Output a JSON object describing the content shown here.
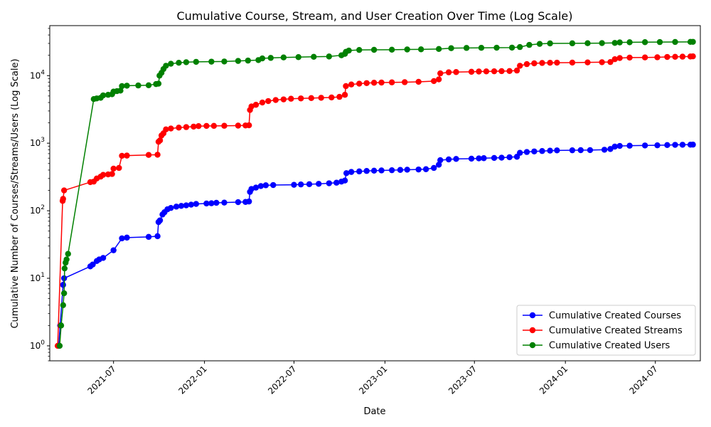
{
  "chart_data": {
    "type": "line",
    "title": "Cumulative Course, Stream, and User Creation Over Time (Log Scale)",
    "xlabel": "Date",
    "ylabel": "Cumulative Number of Courses/Streams/Users (Log Scale)",
    "yscale": "log",
    "ylim": [
      0.6,
      55000
    ],
    "xlim": [
      "2021-02-22",
      "2024-09-30"
    ],
    "x_ticks": [
      "2021-07",
      "2022-01",
      "2022-07",
      "2023-01",
      "2023-07",
      "2024-01",
      "2024-07"
    ],
    "y_ticks": [
      "10^0",
      "10^1",
      "10^2",
      "10^3",
      "10^4"
    ],
    "grid": false,
    "legend_position": "lower-right",
    "series": [
      {
        "name": "Cumulative Created Courses",
        "color": "#0000ff",
        "marker": "circle",
        "points": [
          [
            "2021-03-12",
            1
          ],
          [
            "2021-03-15",
            2
          ],
          [
            "2021-03-21",
            8
          ],
          [
            "2021-03-23",
            10
          ],
          [
            "2021-05-15",
            15
          ],
          [
            "2021-05-20",
            16
          ],
          [
            "2021-05-28",
            18
          ],
          [
            "2021-06-02",
            19
          ],
          [
            "2021-06-10",
            20
          ],
          [
            "2021-07-01",
            26
          ],
          [
            "2021-07-18",
            39
          ],
          [
            "2021-07-28",
            40
          ],
          [
            "2021-09-10",
            41
          ],
          [
            "2021-09-28",
            42
          ],
          [
            "2021-09-30",
            68
          ],
          [
            "2021-10-03",
            72
          ],
          [
            "2021-10-08",
            88
          ],
          [
            "2021-10-12",
            95
          ],
          [
            "2021-10-18",
            105
          ],
          [
            "2021-10-25",
            110
          ],
          [
            "2021-11-05",
            115
          ],
          [
            "2021-11-15",
            118
          ],
          [
            "2021-11-25",
            120
          ],
          [
            "2021-12-05",
            123
          ],
          [
            "2021-12-15",
            126
          ],
          [
            "2022-01-05",
            128
          ],
          [
            "2022-01-15",
            129
          ],
          [
            "2022-01-25",
            131
          ],
          [
            "2022-02-10",
            132
          ],
          [
            "2022-03-10",
            134
          ],
          [
            "2022-03-25",
            135
          ],
          [
            "2022-04-01",
            137
          ],
          [
            "2022-04-03",
            190
          ],
          [
            "2022-04-06",
            210
          ],
          [
            "2022-04-15",
            220
          ],
          [
            "2022-04-25",
            232
          ],
          [
            "2022-05-05",
            238
          ],
          [
            "2022-05-20",
            240
          ],
          [
            "2022-07-01",
            242
          ],
          [
            "2022-07-15",
            245
          ],
          [
            "2022-08-01",
            247
          ],
          [
            "2022-08-20",
            250
          ],
          [
            "2022-09-10",
            255
          ],
          [
            "2022-09-25",
            260
          ],
          [
            "2022-10-05",
            270
          ],
          [
            "2022-10-12",
            280
          ],
          [
            "2022-10-15",
            360
          ],
          [
            "2022-10-25",
            375
          ],
          [
            "2022-11-10",
            382
          ],
          [
            "2022-11-25",
            388
          ],
          [
            "2022-12-10",
            392
          ],
          [
            "2022-12-25",
            395
          ],
          [
            "2023-01-15",
            398
          ],
          [
            "2023-02-01",
            402
          ],
          [
            "2023-02-15",
            405
          ],
          [
            "2023-03-10",
            408
          ],
          [
            "2023-03-25",
            412
          ],
          [
            "2023-04-10",
            430
          ],
          [
            "2023-04-20",
            480
          ],
          [
            "2023-04-23",
            560
          ],
          [
            "2023-05-10",
            575
          ],
          [
            "2023-05-25",
            585
          ],
          [
            "2023-06-25",
            590
          ],
          [
            "2023-07-10",
            595
          ],
          [
            "2023-07-20",
            600
          ],
          [
            "2023-08-10",
            605
          ],
          [
            "2023-08-25",
            610
          ],
          [
            "2023-09-10",
            620
          ],
          [
            "2023-09-25",
            630
          ],
          [
            "2023-10-01",
            720
          ],
          [
            "2023-10-15",
            740
          ],
          [
            "2023-10-30",
            755
          ],
          [
            "2023-11-15",
            765
          ],
          [
            "2023-12-01",
            775
          ],
          [
            "2023-12-15",
            782
          ],
          [
            "2024-01-15",
            785
          ],
          [
            "2024-02-01",
            788
          ],
          [
            "2024-02-20",
            790
          ],
          [
            "2024-03-20",
            800
          ],
          [
            "2024-04-01",
            820
          ],
          [
            "2024-04-10",
            890
          ],
          [
            "2024-04-20",
            910
          ],
          [
            "2024-05-10",
            918
          ],
          [
            "2024-06-10",
            925
          ],
          [
            "2024-07-05",
            930
          ],
          [
            "2024-07-25",
            938
          ],
          [
            "2024-08-10",
            945
          ],
          [
            "2024-08-25",
            948
          ],
          [
            "2024-09-10",
            950
          ],
          [
            "2024-09-15",
            952
          ]
        ]
      },
      {
        "name": "Cumulative Created Streams",
        "color": "#ff0000",
        "marker": "circle",
        "points": [
          [
            "2021-03-10",
            1
          ],
          [
            "2021-03-20",
            140
          ],
          [
            "2021-03-21",
            150
          ],
          [
            "2021-03-23",
            200
          ],
          [
            "2021-05-15",
            265
          ],
          [
            "2021-05-22",
            270
          ],
          [
            "2021-05-28",
            300
          ],
          [
            "2021-06-05",
            320
          ],
          [
            "2021-06-10",
            340
          ],
          [
            "2021-06-20",
            345
          ],
          [
            "2021-06-28",
            350
          ],
          [
            "2021-07-01",
            420
          ],
          [
            "2021-07-12",
            430
          ],
          [
            "2021-07-18",
            650
          ],
          [
            "2021-07-28",
            655
          ],
          [
            "2021-09-10",
            670
          ],
          [
            "2021-09-28",
            675
          ],
          [
            "2021-09-30",
            1050
          ],
          [
            "2021-10-03",
            1100
          ],
          [
            "2021-10-06",
            1300
          ],
          [
            "2021-10-10",
            1400
          ],
          [
            "2021-10-15",
            1600
          ],
          [
            "2021-10-25",
            1650
          ],
          [
            "2021-11-10",
            1700
          ],
          [
            "2021-11-25",
            1730
          ],
          [
            "2021-12-10",
            1760
          ],
          [
            "2021-12-20",
            1790
          ],
          [
            "2022-01-05",
            1800
          ],
          [
            "2022-01-20",
            1805
          ],
          [
            "2022-02-10",
            1810
          ],
          [
            "2022-03-10",
            1820
          ],
          [
            "2022-03-25",
            1830
          ],
          [
            "2022-04-01",
            1840
          ],
          [
            "2022-04-03",
            3100
          ],
          [
            "2022-04-06",
            3500
          ],
          [
            "2022-04-15",
            3700
          ],
          [
            "2022-04-28",
            4000
          ],
          [
            "2022-05-10",
            4200
          ],
          [
            "2022-05-25",
            4350
          ],
          [
            "2022-06-10",
            4450
          ],
          [
            "2022-06-25",
            4550
          ],
          [
            "2022-07-15",
            4600
          ],
          [
            "2022-08-05",
            4650
          ],
          [
            "2022-08-25",
            4700
          ],
          [
            "2022-09-15",
            4750
          ],
          [
            "2022-10-01",
            4850
          ],
          [
            "2022-10-12",
            5200
          ],
          [
            "2022-10-14",
            7000
          ],
          [
            "2022-10-25",
            7400
          ],
          [
            "2022-11-10",
            7600
          ],
          [
            "2022-11-25",
            7750
          ],
          [
            "2022-12-10",
            7850
          ],
          [
            "2022-12-25",
            7900
          ],
          [
            "2023-01-15",
            7950
          ],
          [
            "2023-02-10",
            8000
          ],
          [
            "2023-03-10",
            8100
          ],
          [
            "2023-04-10",
            8300
          ],
          [
            "2023-04-20",
            8800
          ],
          [
            "2023-04-23",
            10800
          ],
          [
            "2023-05-10",
            11200
          ],
          [
            "2023-05-25",
            11300
          ],
          [
            "2023-06-25",
            11400
          ],
          [
            "2023-07-10",
            11500
          ],
          [
            "2023-07-25",
            11550
          ],
          [
            "2023-08-10",
            11600
          ],
          [
            "2023-08-25",
            11650
          ],
          [
            "2023-09-10",
            11700
          ],
          [
            "2023-09-25",
            11900
          ],
          [
            "2023-10-01",
            14000
          ],
          [
            "2023-10-15",
            14800
          ],
          [
            "2023-10-30",
            15200
          ],
          [
            "2023-11-15",
            15400
          ],
          [
            "2023-12-01",
            15500
          ],
          [
            "2023-12-15",
            15550
          ],
          [
            "2024-01-15",
            15600
          ],
          [
            "2024-02-15",
            15700
          ],
          [
            "2024-03-15",
            15800
          ],
          [
            "2024-04-01",
            15900
          ],
          [
            "2024-04-10",
            17500
          ],
          [
            "2024-04-20",
            18200
          ],
          [
            "2024-05-10",
            18500
          ],
          [
            "2024-06-10",
            18600
          ],
          [
            "2024-07-05",
            18700
          ],
          [
            "2024-07-25",
            18900
          ],
          [
            "2024-08-10",
            19000
          ],
          [
            "2024-08-25",
            19100
          ],
          [
            "2024-09-10",
            19200
          ],
          [
            "2024-09-15",
            19300
          ]
        ]
      },
      {
        "name": "Cumulative Created Users",
        "color": "#008000",
        "marker": "circle",
        "points": [
          [
            "2021-03-14",
            1
          ],
          [
            "2021-03-17",
            2
          ],
          [
            "2021-03-21",
            4
          ],
          [
            "2021-03-23",
            6
          ],
          [
            "2021-03-24",
            14
          ],
          [
            "2021-03-26",
            17
          ],
          [
            "2021-03-28",
            19
          ],
          [
            "2021-03-31",
            23
          ],
          [
            "2021-05-22",
            4500
          ],
          [
            "2021-05-28",
            4600
          ],
          [
            "2021-06-05",
            4700
          ],
          [
            "2021-06-10",
            5100
          ],
          [
            "2021-06-20",
            5200
          ],
          [
            "2021-06-28",
            5300
          ],
          [
            "2021-07-01",
            5800
          ],
          [
            "2021-07-08",
            5900
          ],
          [
            "2021-07-15",
            6000
          ],
          [
            "2021-07-18",
            7000
          ],
          [
            "2021-07-28",
            7100
          ],
          [
            "2021-08-20",
            7150
          ],
          [
            "2021-09-10",
            7200
          ],
          [
            "2021-09-25",
            7500
          ],
          [
            "2021-09-30",
            7600
          ],
          [
            "2021-10-02",
            10000
          ],
          [
            "2021-10-06",
            11000
          ],
          [
            "2021-10-10",
            12500
          ],
          [
            "2021-10-15",
            14000
          ],
          [
            "2021-10-25",
            15000
          ],
          [
            "2021-11-10",
            15500
          ],
          [
            "2021-11-25",
            15800
          ],
          [
            "2021-12-15",
            16000
          ],
          [
            "2022-01-15",
            16100
          ],
          [
            "2022-02-10",
            16200
          ],
          [
            "2022-03-10",
            16500
          ],
          [
            "2022-03-30",
            16700
          ],
          [
            "2022-04-20",
            17000
          ],
          [
            "2022-04-28",
            18000
          ],
          [
            "2022-05-15",
            18300
          ],
          [
            "2022-06-10",
            18600
          ],
          [
            "2022-07-10",
            18800
          ],
          [
            "2022-08-10",
            19000
          ],
          [
            "2022-09-10",
            19200
          ],
          [
            "2022-10-05",
            20000
          ],
          [
            "2022-10-12",
            21000
          ],
          [
            "2022-10-14",
            22500
          ],
          [
            "2022-10-20",
            23500
          ],
          [
            "2022-11-10",
            24000
          ],
          [
            "2022-12-10",
            24100
          ],
          [
            "2023-01-15",
            24200
          ],
          [
            "2023-02-15",
            24400
          ],
          [
            "2023-03-15",
            24500
          ],
          [
            "2023-04-20",
            24800
          ],
          [
            "2023-05-15",
            25500
          ],
          [
            "2023-06-15",
            25700
          ],
          [
            "2023-07-15",
            25800
          ],
          [
            "2023-08-15",
            25900
          ],
          [
            "2023-09-15",
            26000
          ],
          [
            "2023-10-01",
            26500
          ],
          [
            "2023-10-20",
            28500
          ],
          [
            "2023-11-10",
            29500
          ],
          [
            "2023-12-01",
            30000
          ],
          [
            "2024-01-15",
            30100
          ],
          [
            "2024-02-15",
            30200
          ],
          [
            "2024-03-15",
            30300
          ],
          [
            "2024-04-10",
            30500
          ],
          [
            "2024-04-20",
            31000
          ],
          [
            "2024-05-10",
            31200
          ],
          [
            "2024-06-10",
            31300
          ],
          [
            "2024-07-10",
            31400
          ],
          [
            "2024-08-10",
            31500
          ],
          [
            "2024-09-10",
            31600
          ],
          [
            "2024-09-15",
            31650
          ]
        ]
      }
    ]
  }
}
